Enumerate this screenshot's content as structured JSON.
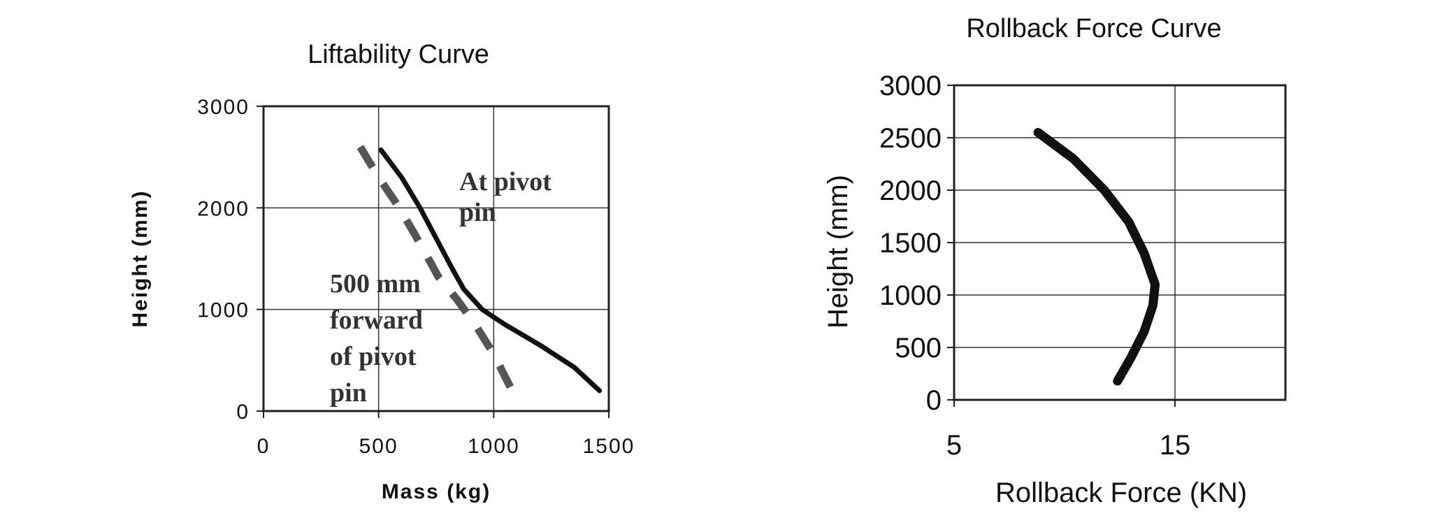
{
  "chart_data": [
    {
      "type": "line",
      "title": "Liftability Curve",
      "xlabel": "Mass (kg)",
      "ylabel": "Height (mm)",
      "xlim": [
        0,
        1500
      ],
      "ylim": [
        0,
        3000
      ],
      "xticks": [
        "0",
        "500",
        "1000",
        "1500"
      ],
      "yticks": [
        "0",
        "1000",
        "2000",
        "3000"
      ],
      "grid": true,
      "legend": "none",
      "series": [
        {
          "name": "At pivot pin",
          "style": "solid",
          "color": "#111111",
          "points": [
            [
              510,
              2570
            ],
            [
              600,
              2300
            ],
            [
              680,
              2000
            ],
            [
              750,
              1700
            ],
            [
              820,
              1400
            ],
            [
              870,
              1200
            ],
            [
              950,
              1000
            ],
            [
              1050,
              850
            ],
            [
              1200,
              650
            ],
            [
              1350,
              430
            ],
            [
              1460,
              200
            ]
          ]
        },
        {
          "name": "500 mm forward of pivot pin",
          "style": "dashed",
          "color": "#555555",
          "points": [
            [
              420,
              2600
            ],
            [
              500,
              2300
            ],
            [
              590,
              2000
            ],
            [
              680,
              1650
            ],
            [
              760,
              1320
            ],
            [
              840,
              1100
            ],
            [
              920,
              850
            ],
            [
              1000,
              560
            ],
            [
              1080,
              200
            ]
          ]
        }
      ],
      "annotations": [
        {
          "lines": [
            "At pivot",
            "pin"
          ]
        },
        {
          "lines": [
            "500 mm",
            "forward",
            "of pivot",
            "pin"
          ]
        }
      ]
    },
    {
      "type": "line",
      "title": "Rollback Force Curve",
      "xlabel": "Rollback Force (KN)",
      "ylabel": "Height (mm)",
      "xlim": [
        5,
        20
      ],
      "ylim": [
        0,
        3000
      ],
      "xticks": [
        "5",
        "15"
      ],
      "yticks": [
        "0",
        "500",
        "1000",
        "1500",
        "2000",
        "2500",
        "3000"
      ],
      "grid": true,
      "legend": "none",
      "series": [
        {
          "style": "solid",
          "color": "#111111",
          "points": [
            [
              8.8,
              2550
            ],
            [
              10.4,
              2300
            ],
            [
              11.8,
              2000
            ],
            [
              12.9,
              1700
            ],
            [
              13.6,
              1400
            ],
            [
              14.1,
              1100
            ],
            [
              14.0,
              900
            ],
            [
              13.6,
              650
            ],
            [
              13.0,
              400
            ],
            [
              12.4,
              180
            ]
          ]
        }
      ]
    }
  ]
}
